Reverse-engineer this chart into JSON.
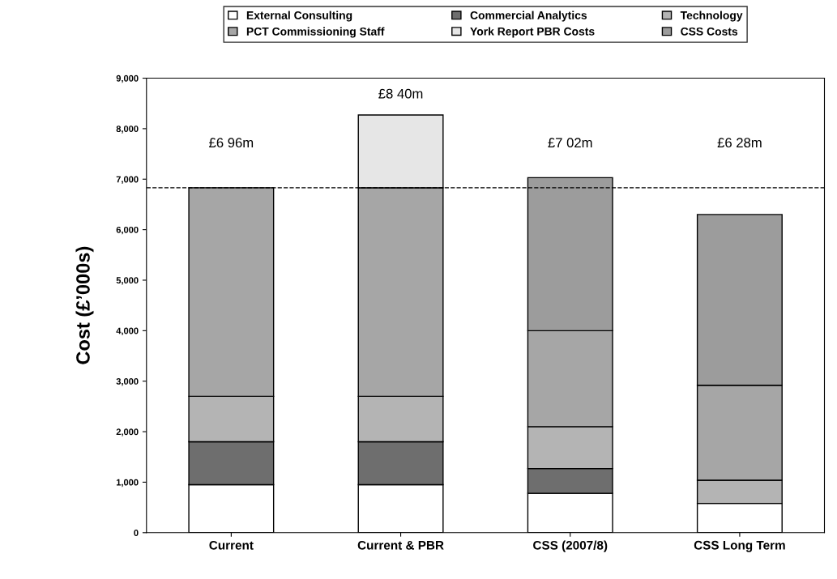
{
  "chart_data": {
    "type": "bar",
    "stacked": true,
    "categories": [
      "Current",
      "Current & PBR",
      "CSS (2007/8)",
      "CSS Long Term"
    ],
    "ylabel": "Cost (£’000s)",
    "ylim": [
      0,
      9000
    ],
    "yticks": [
      0,
      {
        "value": 1000,
        "label": "1,000"
      },
      {
        "value": 2000,
        "label": "2,000"
      },
      {
        "value": 3000,
        "label": "3,000"
      },
      {
        "value": 4000,
        "label": "4,000"
      },
      {
        "value": 5000,
        "label": "5,000"
      },
      {
        "value": 6000,
        "label": "6,000"
      },
      {
        "value": 7000,
        "label": "7,000"
      },
      {
        "value": 8000,
        "label": "8,000"
      },
      {
        "value": 9000,
        "label": "9,000"
      }
    ],
    "series": [
      {
        "name": "External Consulting",
        "color": "#ffffff",
        "values": [
          950,
          950,
          780,
          580
        ]
      },
      {
        "name": "Commercial Analytics",
        "color": "#6e6e6e",
        "values": [
          850,
          850,
          490,
          null
        ]
      },
      {
        "name": "Technology",
        "color": "#b4b4b4",
        "values": [
          900,
          900,
          830,
          460
        ]
      },
      {
        "name": "PCT Commissioning Staff",
        "color": "#a6a6a6",
        "values": [
          4130,
          4130,
          1900,
          1880
        ]
      },
      {
        "name": "York Report PBR Costs",
        "color": "#e6e6e6",
        "values": [
          null,
          1440,
          null,
          null
        ]
      },
      {
        "name": "CSS Costs",
        "color": "#9c9c9c",
        "values": [
          null,
          null,
          3030,
          3380
        ]
      }
    ],
    "ref_lines": [
      {
        "axis": "y",
        "value": 6830,
        "color": "#000000",
        "line_style": "dashed"
      }
    ],
    "annotations": [
      "£6 96m",
      "£8 40m",
      "£7 02m",
      "£6 28m"
    ],
    "legend": "top",
    "grid": false
  }
}
